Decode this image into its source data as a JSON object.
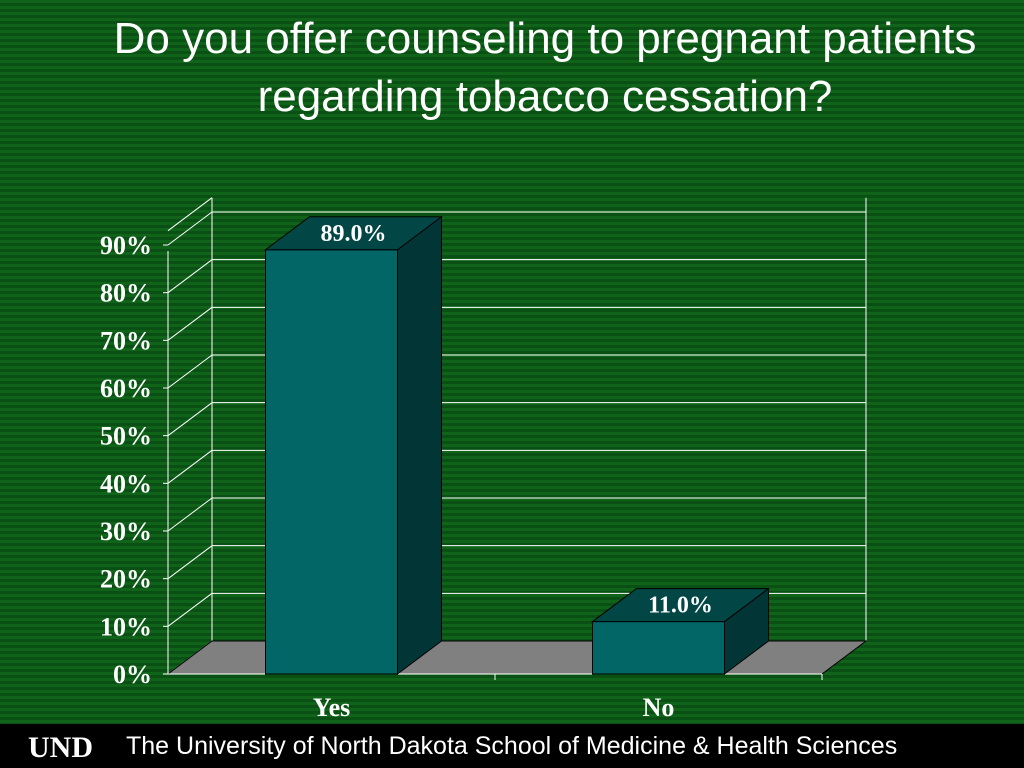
{
  "slide": {
    "title": "Do you offer counseling to pregnant patients regarding tobacco cessation?"
  },
  "footer": {
    "logo_text": "UND",
    "institution": "The University of North Dakota School of Medicine & Health Sciences",
    "background": "#000000"
  },
  "colors": {
    "background": "#0d5a16",
    "bar_front": "#036666",
    "bar_top": "#024646",
    "bar_side": "#023636",
    "floor": "#808080",
    "grid": "#ffffff",
    "text": "#ffffff"
  },
  "chart_data": {
    "type": "bar",
    "style": "3d",
    "categories": [
      "Yes",
      "No"
    ],
    "values": [
      89.0,
      11.0
    ],
    "data_labels": [
      "89.0%",
      "11.0%"
    ],
    "y_ticks": [
      "0%",
      "10%",
      "20%",
      "30%",
      "40%",
      "50%",
      "60%",
      "70%",
      "80%",
      "90%"
    ],
    "ylim": [
      0,
      90
    ],
    "grid": true,
    "legend": false,
    "title": "Do you offer counseling to pregnant patients regarding tobacco cessation?"
  }
}
